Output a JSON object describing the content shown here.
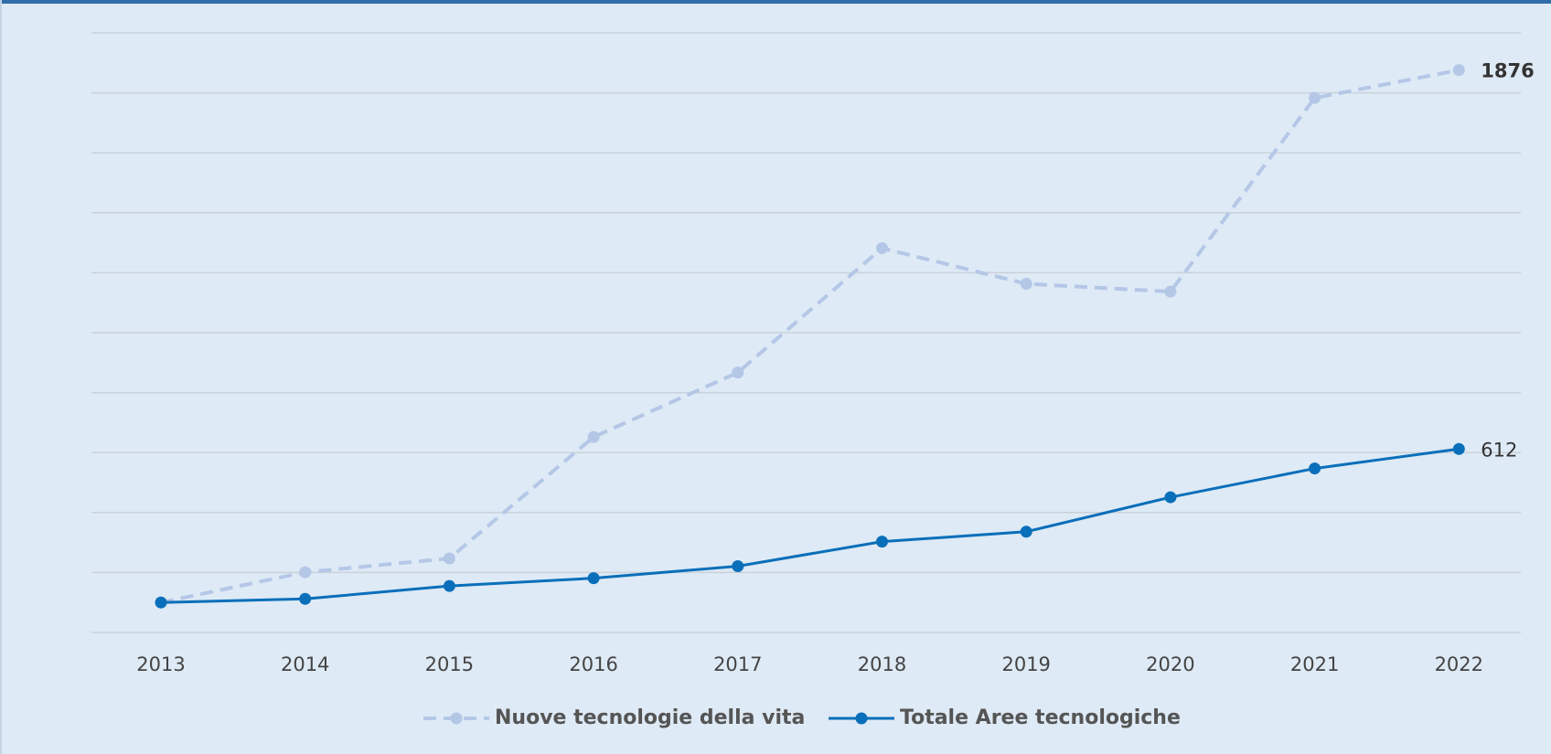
{
  "chart_data": {
    "type": "line",
    "categories": [
      "2013",
      "2014",
      "2015",
      "2016",
      "2017",
      "2018",
      "2019",
      "2020",
      "2021",
      "2022"
    ],
    "series": [
      {
        "name": "Nuove tecnologie della vita",
        "color": "#b4c7e7",
        "dashed": true,
        "values": [
          100,
          201,
          247,
          652,
          867,
          1282,
          1163,
          1137,
          1783,
          1876
        ]
      },
      {
        "name": "Totale Aree tecnologiche",
        "color": "#0a6fba",
        "dashed": false,
        "values": [
          100,
          112,
          155,
          181,
          221,
          303,
          336,
          451,
          547,
          612
        ]
      }
    ],
    "ylim": [
      0,
      2000
    ],
    "yticks": [
      0,
      200,
      400,
      600,
      800,
      1000,
      1200,
      1400,
      1600,
      1800,
      2000
    ],
    "grid": true
  }
}
